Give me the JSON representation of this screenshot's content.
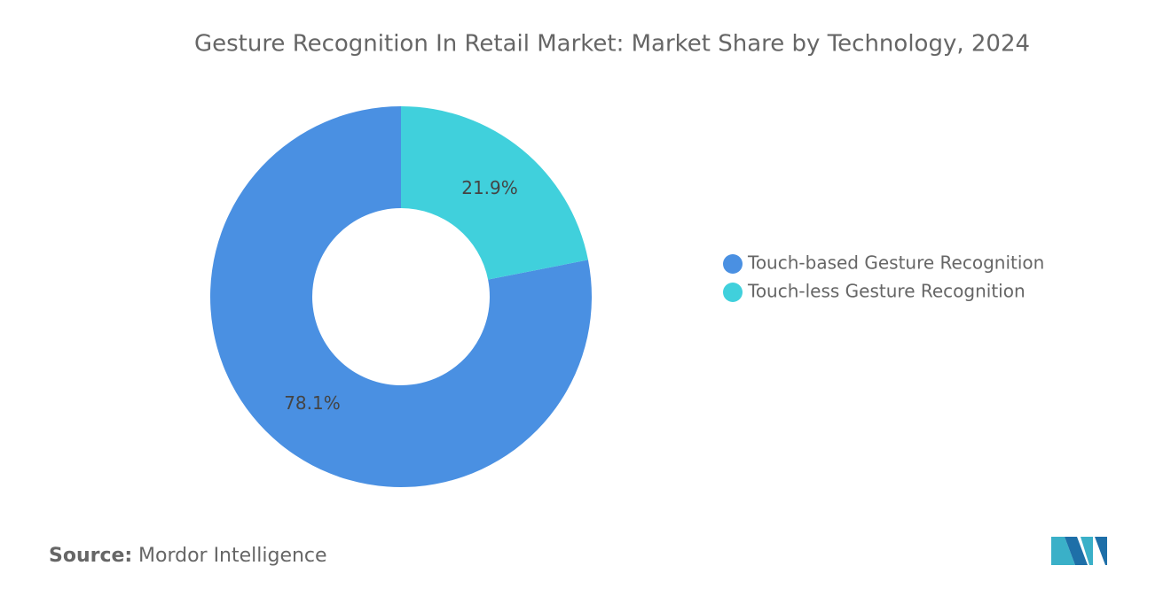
{
  "chart_data": {
    "type": "pie",
    "donut": true,
    "title": "Gesture Recognition In Retail Market: Market Share by Technology, 2024",
    "categories": [
      "Touch-based Gesture Recognition",
      "Touch-less Gesture Recognition"
    ],
    "values": [
      78.1,
      21.9
    ],
    "value_labels": [
      "78.1%",
      "21.9%"
    ],
    "colors": [
      "#4a90e2",
      "#40d0dc"
    ],
    "legend": "right",
    "source_label": "Source:",
    "source": "Mordor Intelligence"
  }
}
